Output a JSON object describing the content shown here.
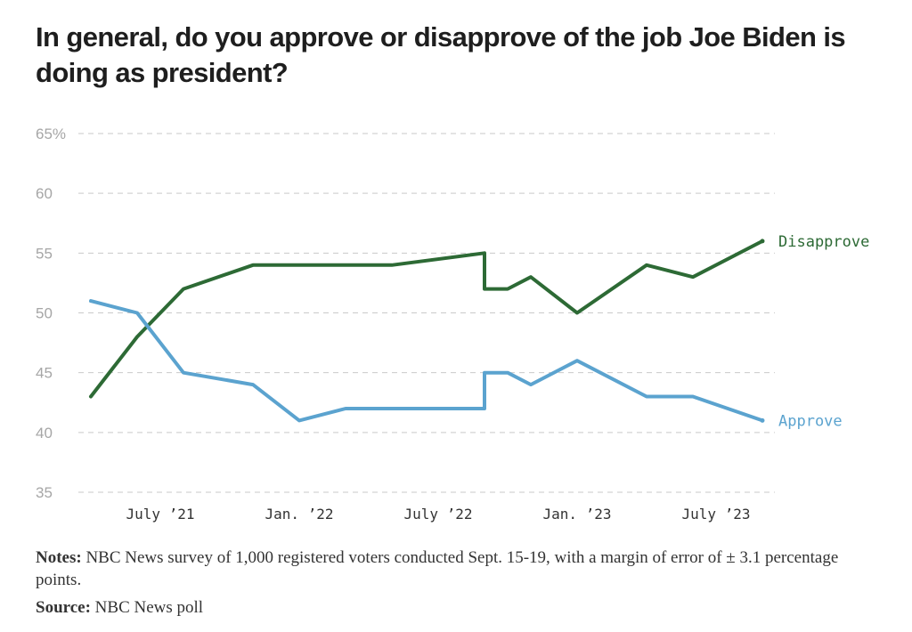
{
  "title": "In general, do you approve or disapprove of the job Joe Biden is doing as president?",
  "chart_data": {
    "type": "line",
    "y_ticks": [
      "65%",
      "60",
      "55",
      "50",
      "45",
      "40",
      "35"
    ],
    "y_tick_values": [
      65,
      60,
      55,
      50,
      45,
      40,
      35
    ],
    "ylim": [
      35,
      65
    ],
    "xlim": [
      "2021-04",
      "2023-09"
    ],
    "x_ticks": [
      {
        "label": "July ’21",
        "date": "2021-07"
      },
      {
        "label": "Jan. ’22",
        "date": "2022-01"
      },
      {
        "label": "July ’22",
        "date": "2022-07"
      },
      {
        "label": "Jan. ’23",
        "date": "2023-01"
      },
      {
        "label": "July ’23",
        "date": "2023-07"
      }
    ],
    "grid": true,
    "series": [
      {
        "name": "Disapprove",
        "color": "#2d6a35",
        "points": [
          {
            "date": "2021-04",
            "value": 43
          },
          {
            "date": "2021-06",
            "value": 48
          },
          {
            "date": "2021-08",
            "value": 52
          },
          {
            "date": "2021-11",
            "value": 54
          },
          {
            "date": "2022-01",
            "value": 54
          },
          {
            "date": "2022-05",
            "value": 54
          },
          {
            "date": "2022-09",
            "value": 55
          },
          {
            "date": "2022-09",
            "value": 52
          },
          {
            "date": "2022-10",
            "value": 52
          },
          {
            "date": "2022-11",
            "value": 53
          },
          {
            "date": "2023-01",
            "value": 50
          },
          {
            "date": "2023-04",
            "value": 54
          },
          {
            "date": "2023-06",
            "value": 53
          },
          {
            "date": "2023-09",
            "value": 56
          }
        ]
      },
      {
        "name": "Approve",
        "color": "#5ba3cf",
        "points": [
          {
            "date": "2021-04",
            "value": 51
          },
          {
            "date": "2021-06",
            "value": 50
          },
          {
            "date": "2021-08",
            "value": 45
          },
          {
            "date": "2021-11",
            "value": 44
          },
          {
            "date": "2022-01",
            "value": 41
          },
          {
            "date": "2022-03",
            "value": 42
          },
          {
            "date": "2022-05",
            "value": 42
          },
          {
            "date": "2022-09",
            "value": 42
          },
          {
            "date": "2022-09",
            "value": 45
          },
          {
            "date": "2022-10",
            "value": 45
          },
          {
            "date": "2022-11",
            "value": 44
          },
          {
            "date": "2023-01",
            "value": 46
          },
          {
            "date": "2023-04",
            "value": 43
          },
          {
            "date": "2023-06",
            "value": 43
          },
          {
            "date": "2023-09",
            "value": 41
          }
        ]
      }
    ]
  },
  "notes": {
    "label": "Notes:",
    "text": " NBC News survey of 1,000 registered voters conducted Sept. 15-19, with a margin of error of ± 3.1 percentage points."
  },
  "source": {
    "label": "Source:",
    "text": " NBC News poll"
  }
}
